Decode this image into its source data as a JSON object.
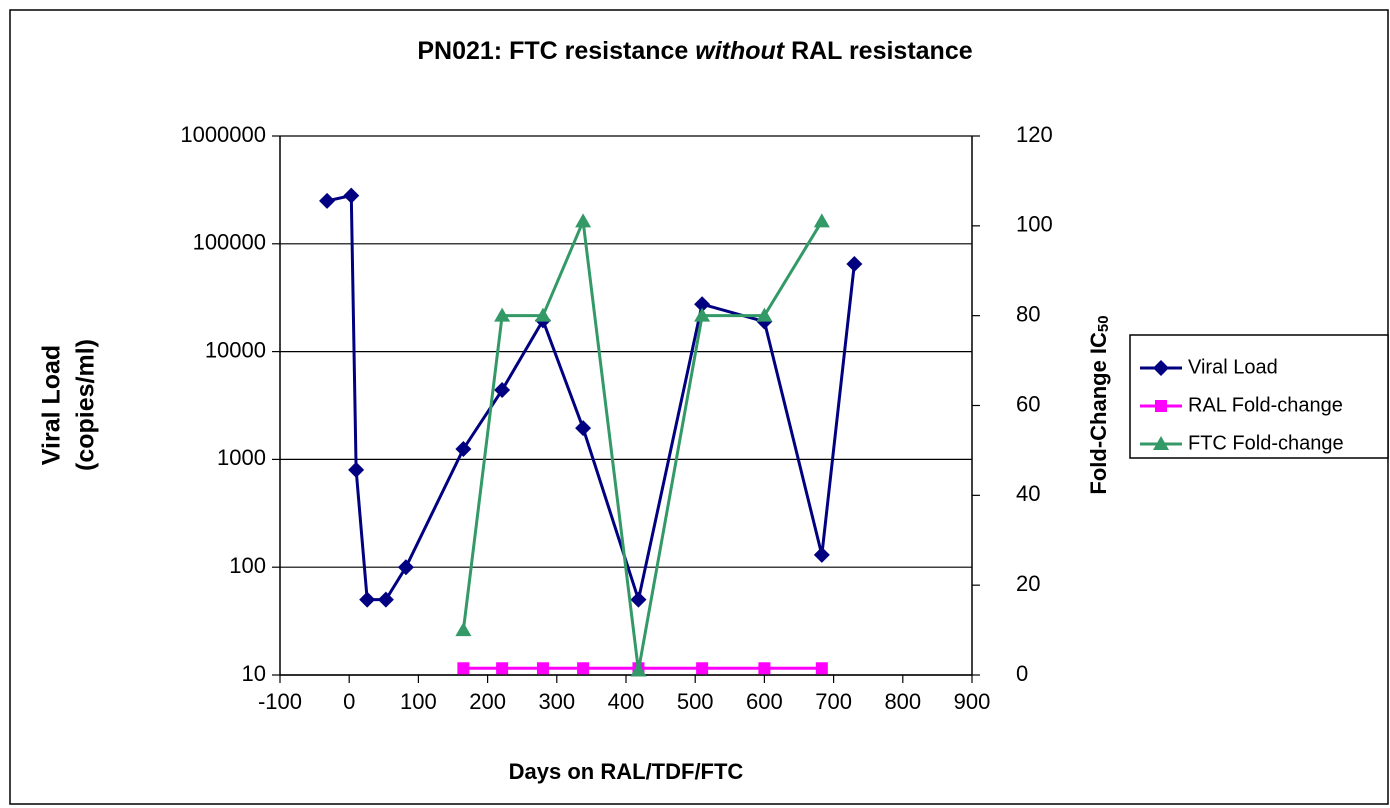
{
  "chart_data": {
    "type": "line",
    "title": [
      "PN021:  FTC resistance ",
      "without",
      " RAL resistance"
    ],
    "xlabel": "Days on RAL/TDF/FTC",
    "ylabel": [
      "Viral Load",
      "(copies/ml)"
    ],
    "y2label": [
      "Fold-Change IC",
      "50"
    ],
    "xlim": [
      -100,
      900
    ],
    "xticks": [
      -100,
      0,
      100,
      200,
      300,
      400,
      500,
      600,
      700,
      800,
      900
    ],
    "ylim": [
      10,
      1000000
    ],
    "yscale": "log",
    "yticks": [
      10,
      100,
      1000,
      10000,
      100000,
      1000000
    ],
    "y2lim": [
      0,
      120
    ],
    "y2ticks": [
      0,
      20,
      40,
      60,
      80,
      100,
      120
    ],
    "grid": true,
    "legend": "right",
    "series": [
      {
        "name": "Viral Load",
        "color": "#000080",
        "marker": "diamond",
        "x": [
          -32,
          3,
          10,
          26,
          53,
          82,
          165,
          221,
          280,
          338,
          418,
          510,
          600,
          683,
          730
        ],
        "values": [
          250000,
          280000,
          800,
          50,
          50,
          100,
          1250,
          4400,
          19500,
          1950,
          50,
          27500,
          19000,
          130,
          65000
        ]
      },
      {
        "name": "RAL Fold-change",
        "color": "#ff00ff",
        "marker": "square",
        "axis": "y2",
        "x": [
          165,
          221,
          280,
          338,
          418,
          510,
          600,
          683
        ],
        "values": [
          1.5,
          1.5,
          1.5,
          1.5,
          1.5,
          1.5,
          1.5,
          1.5
        ]
      },
      {
        "name": "FTC Fold-change",
        "color": "#339966",
        "marker": "triangle",
        "axis": "y2",
        "x": [
          165,
          221,
          280,
          338,
          418,
          510,
          600,
          683
        ],
        "values": [
          10,
          80,
          80,
          101,
          1,
          80,
          80,
          101
        ]
      }
    ]
  }
}
